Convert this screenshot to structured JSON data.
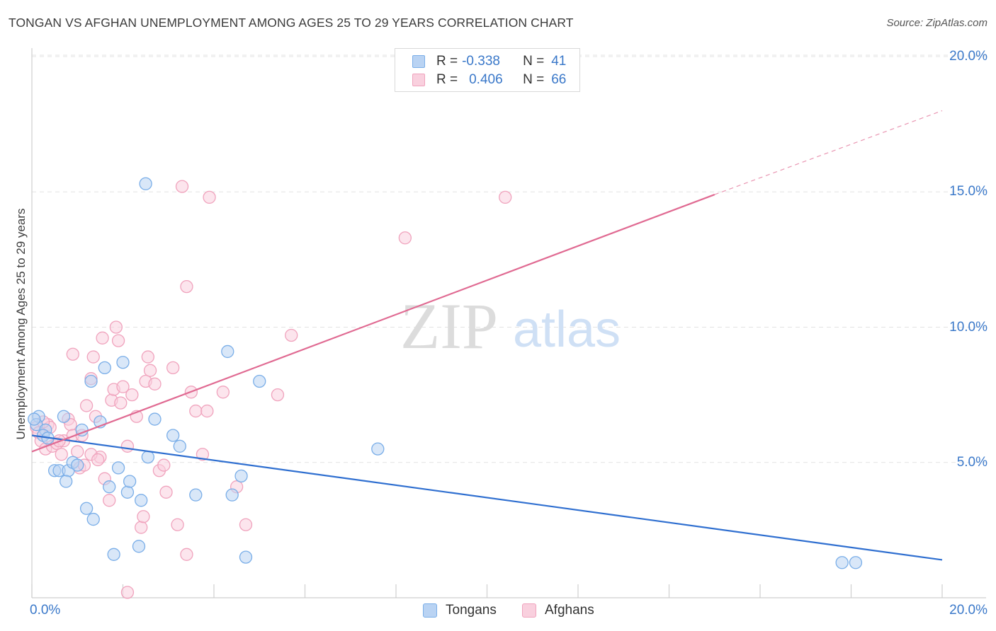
{
  "chart_data": {
    "type": "scatter",
    "title": "TONGAN VS AFGHAN UNEMPLOYMENT AMONG AGES 25 TO 29 YEARS CORRELATION CHART",
    "source": "Source: ZipAtlas.com",
    "xlabel": "",
    "ylabel": "Unemployment Among Ages 25 to 29 years",
    "xlim": [
      0,
      20
    ],
    "ylim": [
      0,
      20
    ],
    "x_tick_labels": [
      "0.0%",
      "20.0%"
    ],
    "y_ticks": [
      {
        "value": 5,
        "label": "5.0%"
      },
      {
        "value": 10,
        "label": "10.0%"
      },
      {
        "value": 15,
        "label": "15.0%"
      },
      {
        "value": 20,
        "label": "20.0%"
      }
    ],
    "grid": true,
    "watermark": "ZIPatlas",
    "legend": {
      "rows": [
        {
          "series": "Tongans",
          "r_label": "R =",
          "r_value": "-0.338",
          "n_label": "N =",
          "n_value": "41"
        },
        {
          "series": "Afghans",
          "r_label": "R =",
          "r_value": "0.406",
          "n_label": "N =",
          "n_value": "66"
        }
      ]
    },
    "series": [
      {
        "name": "Tongans",
        "color": "#7aaee8",
        "fill": "#b9d3f3",
        "line_color": "#2f6fd0",
        "trend": {
          "x": [
            0,
            20
          ],
          "y": [
            6.0,
            1.4
          ]
        },
        "points": [
          {
            "x": 0.15,
            "y": 6.7
          },
          {
            "x": 0.1,
            "y": 6.4
          },
          {
            "x": 0.3,
            "y": 6.2
          },
          {
            "x": 0.25,
            "y": 6.0
          },
          {
            "x": 0.35,
            "y": 5.9
          },
          {
            "x": 0.7,
            "y": 6.7
          },
          {
            "x": 1.1,
            "y": 6.2
          },
          {
            "x": 1.5,
            "y": 6.5
          },
          {
            "x": 1.3,
            "y": 8.0
          },
          {
            "x": 1.6,
            "y": 8.5
          },
          {
            "x": 2.0,
            "y": 8.7
          },
          {
            "x": 2.5,
            "y": 15.3
          },
          {
            "x": 0.5,
            "y": 4.7
          },
          {
            "x": 0.6,
            "y": 4.7
          },
          {
            "x": 0.8,
            "y": 4.7
          },
          {
            "x": 0.9,
            "y": 5.0
          },
          {
            "x": 1.0,
            "y": 4.9
          },
          {
            "x": 0.75,
            "y": 4.3
          },
          {
            "x": 1.2,
            "y": 3.3
          },
          {
            "x": 1.35,
            "y": 2.9
          },
          {
            "x": 1.7,
            "y": 4.1
          },
          {
            "x": 1.9,
            "y": 4.8
          },
          {
            "x": 2.1,
            "y": 3.9
          },
          {
            "x": 2.15,
            "y": 4.3
          },
          {
            "x": 2.4,
            "y": 3.6
          },
          {
            "x": 2.55,
            "y": 5.2
          },
          {
            "x": 2.7,
            "y": 6.6
          },
          {
            "x": 3.1,
            "y": 6.0
          },
          {
            "x": 3.25,
            "y": 5.6
          },
          {
            "x": 3.6,
            "y": 3.8
          },
          {
            "x": 4.3,
            "y": 9.1
          },
          {
            "x": 4.4,
            "y": 3.8
          },
          {
            "x": 4.6,
            "y": 4.5
          },
          {
            "x": 5.0,
            "y": 8.0
          },
          {
            "x": 1.8,
            "y": 1.6
          },
          {
            "x": 2.35,
            "y": 1.9
          },
          {
            "x": 4.7,
            "y": 1.5
          },
          {
            "x": 7.6,
            "y": 5.5
          },
          {
            "x": 17.8,
            "y": 1.3
          },
          {
            "x": 18.1,
            "y": 1.3
          },
          {
            "x": 0.05,
            "y": 6.6
          }
        ]
      },
      {
        "name": "Afghans",
        "color": "#f0a3bd",
        "fill": "#f9d0de",
        "line_color": "#e06a92",
        "trend": {
          "x": [
            0,
            15
          ],
          "y": [
            5.4,
            14.9
          ]
        },
        "trend_dashed": {
          "x": [
            15,
            20
          ],
          "y": [
            14.9,
            18.0
          ]
        },
        "points": [
          {
            "x": 0.1,
            "y": 6.3
          },
          {
            "x": 0.15,
            "y": 6.1
          },
          {
            "x": 0.2,
            "y": 5.8
          },
          {
            "x": 0.3,
            "y": 5.5
          },
          {
            "x": 0.35,
            "y": 6.4
          },
          {
            "x": 0.45,
            "y": 5.6
          },
          {
            "x": 0.55,
            "y": 5.7
          },
          {
            "x": 0.7,
            "y": 5.8
          },
          {
            "x": 0.8,
            "y": 6.6
          },
          {
            "x": 0.85,
            "y": 6.4
          },
          {
            "x": 0.9,
            "y": 6.0
          },
          {
            "x": 1.0,
            "y": 5.4
          },
          {
            "x": 1.05,
            "y": 4.8
          },
          {
            "x": 1.1,
            "y": 6.0
          },
          {
            "x": 1.2,
            "y": 7.1
          },
          {
            "x": 1.3,
            "y": 8.1
          },
          {
            "x": 1.35,
            "y": 8.9
          },
          {
            "x": 1.4,
            "y": 6.7
          },
          {
            "x": 0.9,
            "y": 9.0
          },
          {
            "x": 1.5,
            "y": 5.2
          },
          {
            "x": 1.6,
            "y": 4.4
          },
          {
            "x": 1.7,
            "y": 3.6
          },
          {
            "x": 1.75,
            "y": 7.3
          },
          {
            "x": 1.8,
            "y": 7.7
          },
          {
            "x": 1.85,
            "y": 10.0
          },
          {
            "x": 1.9,
            "y": 9.5
          },
          {
            "x": 1.95,
            "y": 7.2
          },
          {
            "x": 2.0,
            "y": 7.8
          },
          {
            "x": 2.1,
            "y": 5.6
          },
          {
            "x": 2.2,
            "y": 7.5
          },
          {
            "x": 2.3,
            "y": 6.7
          },
          {
            "x": 2.4,
            "y": 2.6
          },
          {
            "x": 2.45,
            "y": 3.0
          },
          {
            "x": 2.5,
            "y": 8.0
          },
          {
            "x": 2.55,
            "y": 8.9
          },
          {
            "x": 2.6,
            "y": 8.4
          },
          {
            "x": 2.7,
            "y": 7.9
          },
          {
            "x": 2.8,
            "y": 4.7
          },
          {
            "x": 2.9,
            "y": 4.9
          },
          {
            "x": 2.95,
            "y": 3.9
          },
          {
            "x": 3.1,
            "y": 8.5
          },
          {
            "x": 3.2,
            "y": 2.7
          },
          {
            "x": 3.3,
            "y": 15.2
          },
          {
            "x": 3.4,
            "y": 11.5
          },
          {
            "x": 3.5,
            "y": 7.6
          },
          {
            "x": 3.6,
            "y": 6.9
          },
          {
            "x": 3.75,
            "y": 5.3
          },
          {
            "x": 3.85,
            "y": 6.9
          },
          {
            "x": 3.9,
            "y": 14.8
          },
          {
            "x": 4.2,
            "y": 7.6
          },
          {
            "x": 4.5,
            "y": 4.1
          },
          {
            "x": 4.7,
            "y": 2.7
          },
          {
            "x": 5.4,
            "y": 7.5
          },
          {
            "x": 5.7,
            "y": 9.7
          },
          {
            "x": 8.2,
            "y": 13.3
          },
          {
            "x": 10.4,
            "y": 14.8
          },
          {
            "x": 1.55,
            "y": 9.6
          },
          {
            "x": 2.1,
            "y": 0.2
          },
          {
            "x": 3.4,
            "y": 1.6
          },
          {
            "x": 1.3,
            "y": 5.3
          },
          {
            "x": 0.6,
            "y": 5.8
          },
          {
            "x": 0.4,
            "y": 6.3
          },
          {
            "x": 0.25,
            "y": 6.5
          },
          {
            "x": 1.15,
            "y": 4.9
          },
          {
            "x": 0.65,
            "y": 5.3
          },
          {
            "x": 1.45,
            "y": 5.1
          }
        ]
      }
    ]
  }
}
